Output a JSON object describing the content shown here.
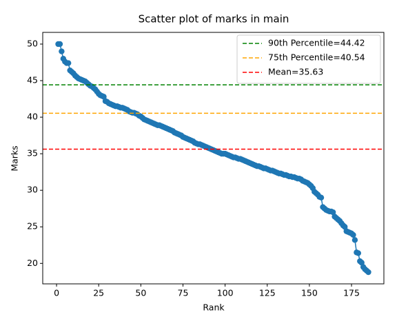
{
  "chart_data": {
    "type": "scatter",
    "title": "Scatter plot of marks in main",
    "x_label": "Rank",
    "y_label": "Marks",
    "xlim": [
      -8.2,
      194.2
    ],
    "ylim": [
      17.2,
      51.6
    ],
    "xticks": [
      0,
      25,
      50,
      75,
      100,
      125,
      150,
      175
    ],
    "yticks": [
      20,
      25,
      30,
      35,
      40,
      45,
      50
    ],
    "legend_position": "upper right",
    "series": [
      {
        "color": "#1f77b4",
        "x": [
          1,
          2,
          3,
          4,
          5,
          6,
          7,
          8,
          9,
          10,
          11,
          12,
          13,
          14,
          15,
          16,
          17,
          18,
          19,
          20,
          21,
          22,
          23,
          24,
          25,
          26,
          27,
          28,
          29,
          30,
          31,
          32,
          33,
          34,
          35,
          36,
          37,
          38,
          39,
          40,
          41,
          42,
          43,
          44,
          45,
          46,
          47,
          48,
          49,
          50,
          51,
          52,
          53,
          54,
          55,
          56,
          57,
          58,
          59,
          60,
          61,
          62,
          63,
          64,
          65,
          66,
          67,
          68,
          69,
          70,
          71,
          72,
          73,
          74,
          75,
          76,
          77,
          78,
          79,
          80,
          81,
          82,
          83,
          84,
          85,
          86,
          87,
          88,
          89,
          90,
          91,
          92,
          93,
          94,
          95,
          96,
          97,
          98,
          99,
          100,
          101,
          102,
          103,
          104,
          105,
          106,
          107,
          108,
          109,
          110,
          111,
          112,
          113,
          114,
          115,
          116,
          117,
          118,
          119,
          120,
          121,
          122,
          123,
          124,
          125,
          126,
          127,
          128,
          129,
          130,
          131,
          132,
          133,
          134,
          135,
          136,
          137,
          138,
          139,
          140,
          141,
          142,
          143,
          144,
          145,
          146,
          147,
          148,
          149,
          150,
          151,
          152,
          153,
          154,
          155,
          156,
          157,
          158,
          159,
          160,
          161,
          162,
          163,
          164,
          165,
          166,
          167,
          168,
          169,
          170,
          171,
          172,
          173,
          174,
          175,
          176,
          177,
          178,
          179,
          180,
          181,
          182,
          183,
          184,
          185
        ],
        "values": [
          50,
          50,
          49,
          48,
          47.6,
          47.4,
          47.4,
          46.4,
          46.2,
          46,
          45.7,
          45.5,
          45.3,
          45.2,
          45.1,
          45,
          44.9,
          44.7,
          44.5,
          44.3,
          44.2,
          44,
          43.8,
          43.5,
          43.2,
          43,
          42.9,
          42.8,
          42.2,
          42.1,
          41.9,
          41.8,
          41.7,
          41.6,
          41.5,
          41.5,
          41.4,
          41.3,
          41.3,
          41.2,
          41.1,
          41,
          40.8,
          40.7,
          40.6,
          40.6,
          40.5,
          40.4,
          40.2,
          40.1,
          39.9,
          39.7,
          39.6,
          39.5,
          39.4,
          39.3,
          39.2,
          39.1,
          39,
          38.9,
          38.9,
          38.8,
          38.7,
          38.6,
          38.5,
          38.4,
          38.3,
          38.2,
          38.1,
          37.9,
          37.8,
          37.7,
          37.6,
          37.5,
          37.3,
          37.2,
          37.1,
          37,
          36.9,
          36.8,
          36.7,
          36.5,
          36.4,
          36.3,
          36.3,
          36.2,
          36.1,
          36,
          35.9,
          35.8,
          35.7,
          35.6,
          35.5,
          35.4,
          35.3,
          35.2,
          35.1,
          35,
          35,
          35,
          34.9,
          34.8,
          34.7,
          34.6,
          34.5,
          34.5,
          34.4,
          34.3,
          34.3,
          34.2,
          34.1,
          34,
          33.9,
          33.8,
          33.7,
          33.6,
          33.5,
          33.4,
          33.3,
          33.3,
          33.2,
          33.1,
          33,
          33,
          32.9,
          32.8,
          32.7,
          32.7,
          32.6,
          32.5,
          32.4,
          32.3,
          32.3,
          32.2,
          32.1,
          32.1,
          32,
          31.9,
          31.9,
          31.8,
          31.8,
          31.7,
          31.6,
          31.6,
          31.5,
          31.3,
          31.2,
          31.1,
          31,
          30.8,
          30.6,
          30.3,
          29.8,
          29.6,
          29.4,
          29.1,
          29,
          27.7,
          27.5,
          27.3,
          27.2,
          27.1,
          27.1,
          27,
          26.4,
          26.2,
          26,
          25.8,
          25.5,
          25.2,
          25,
          24.4,
          24.3,
          24.2,
          24.1,
          23.9,
          23.2,
          21.5,
          21.4,
          20.3,
          20.1,
          19.5,
          19.2,
          19,
          18.8
        ]
      }
    ],
    "hlines": [
      {
        "label": "90th Percentile=44.42",
        "value": 44.42,
        "color": "green"
      },
      {
        "label": "75th Percentile=40.54",
        "value": 40.54,
        "color": "orange"
      },
      {
        "label": "Mean=35.63",
        "value": 35.63,
        "color": "red"
      }
    ]
  }
}
